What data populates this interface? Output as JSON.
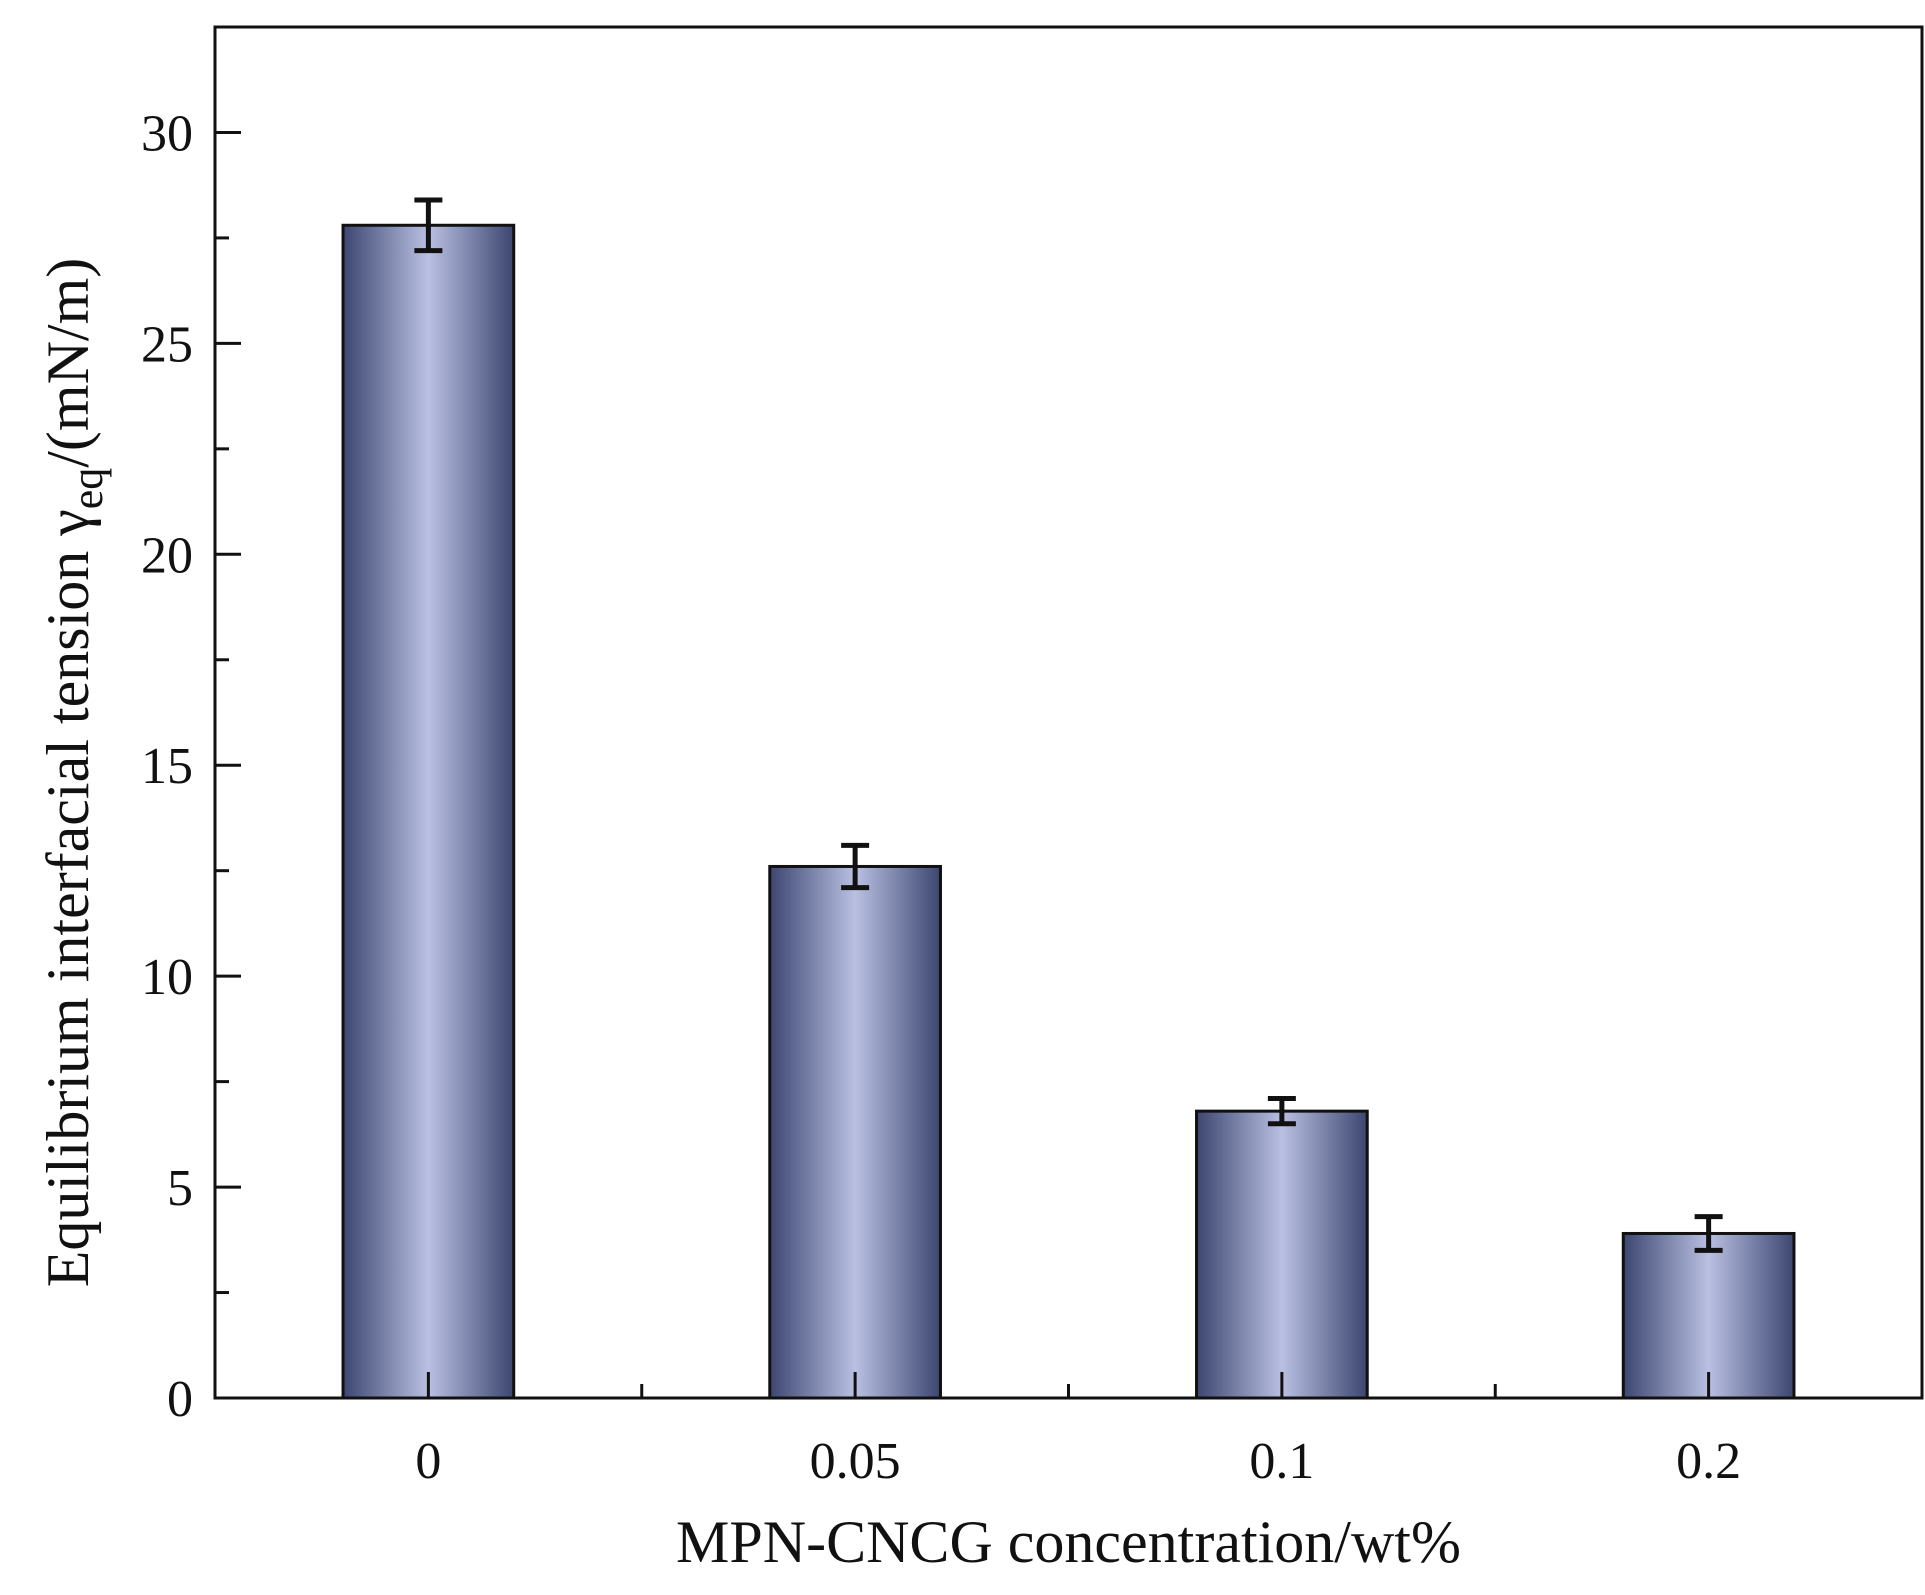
{
  "chart_data": {
    "type": "bar",
    "categories": [
      "0",
      "0.05",
      "0.1",
      "0.2"
    ],
    "values": [
      27.8,
      12.6,
      6.8,
      3.9
    ],
    "errors": [
      0.6,
      0.5,
      0.3,
      0.4
    ],
    "xlabel": "MPN-CNCG concentration/wt%",
    "ylabel": {
      "main": "Equilibrium interfacial tension γ",
      "subscript": "eq",
      "suffix": "/(mN/m)"
    },
    "ylim": [
      0,
      32.5
    ],
    "yticks": [
      0,
      5,
      10,
      15,
      20,
      25,
      30
    ],
    "grid": false,
    "colors": {
      "bar_edge": "#3c4670",
      "bar_center": "#b9c0e2",
      "axis": "#111111"
    }
  }
}
